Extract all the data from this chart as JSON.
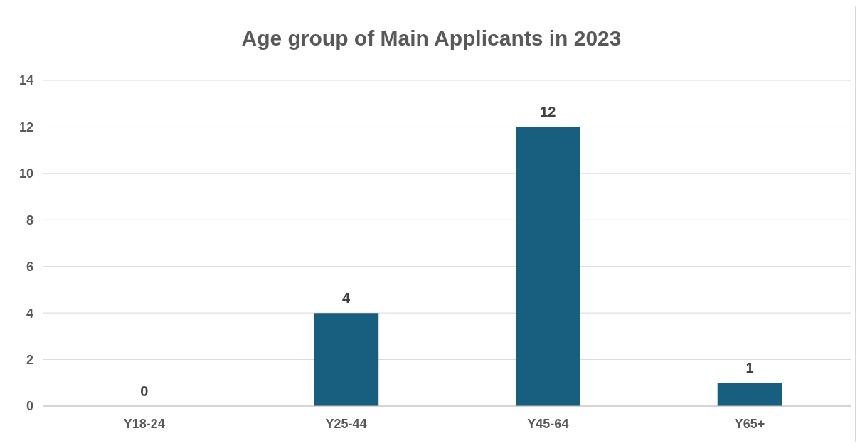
{
  "chart_data": {
    "type": "bar",
    "title": "Age group of Main Applicants in 2023",
    "categories": [
      "Y18-24",
      "Y25-44",
      "Y45-64",
      "Y65+"
    ],
    "values": [
      0,
      4,
      12,
      1
    ],
    "color": "#175e7f",
    "ylim": [
      0,
      14
    ],
    "yticks": [
      0,
      2,
      4,
      6,
      8,
      10,
      12,
      14
    ],
    "grid": "y",
    "data_labels": true
  }
}
